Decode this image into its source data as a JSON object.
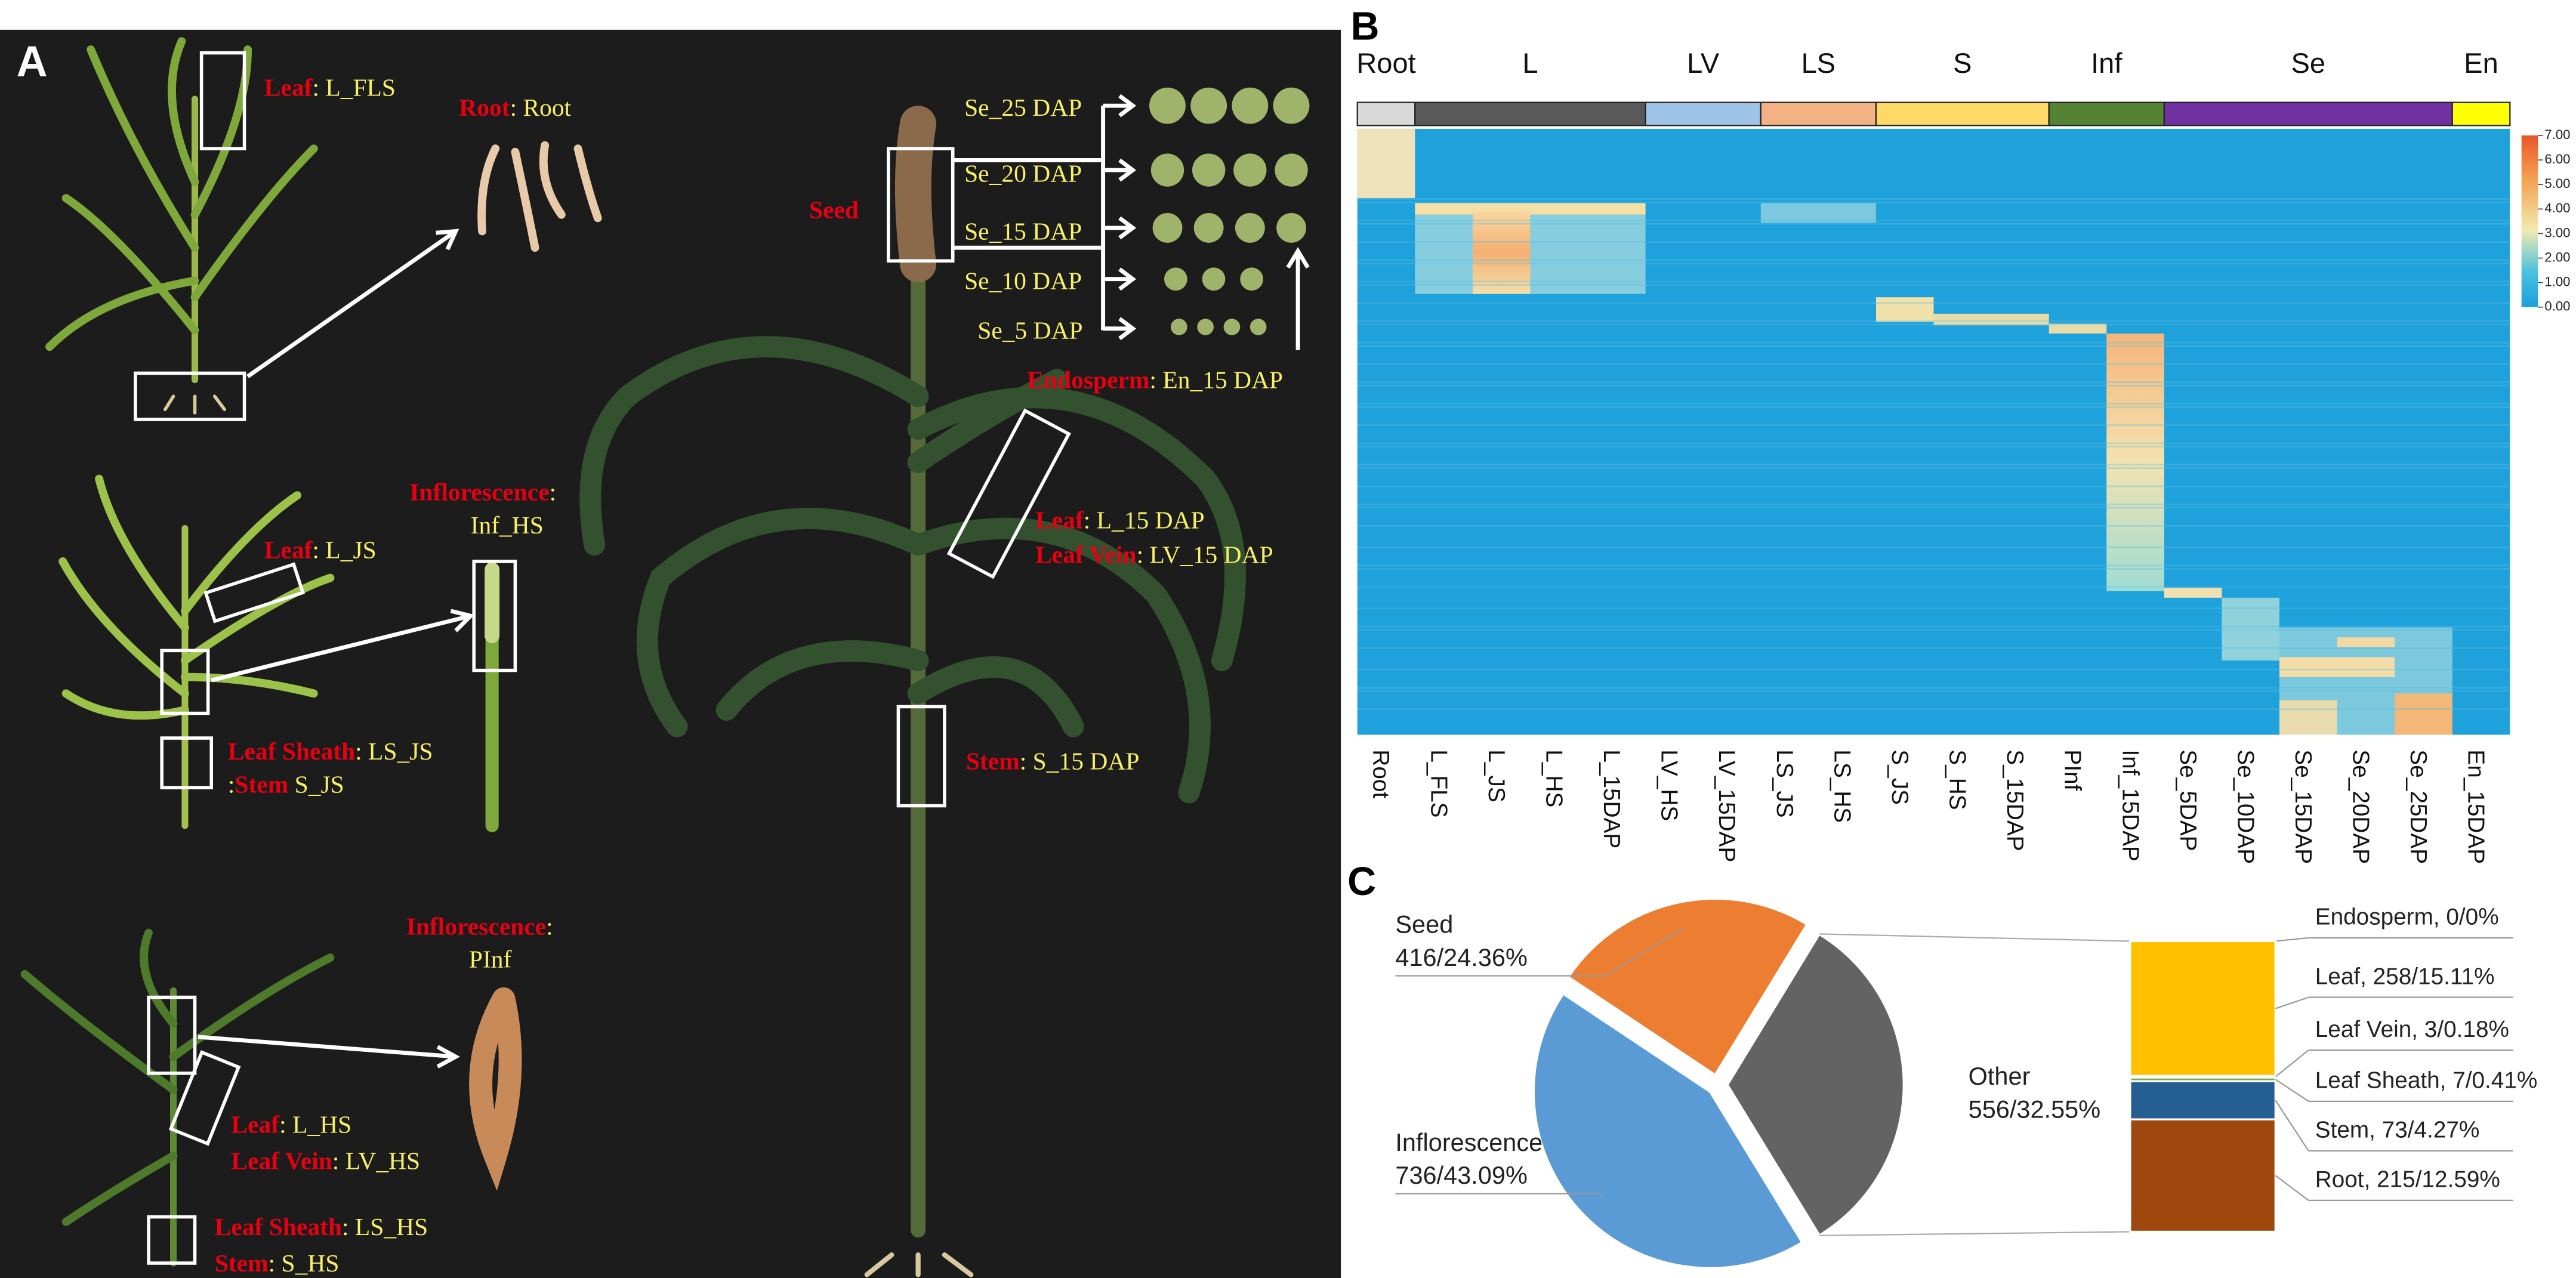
{
  "figure": {
    "panel_labels": [
      "A",
      "B",
      "C"
    ],
    "panel_a": {
      "annotations": [
        {
          "parts": [
            {
              "text": "Leaf",
              "color": "red"
            },
            {
              "text": ": L_FLS",
              "color": "yellow"
            }
          ]
        },
        {
          "parts": [
            {
              "text": "Root",
              "color": "red"
            },
            {
              "text": ": Root",
              "color": "yellow"
            }
          ]
        },
        {
          "parts": [
            {
              "text": "Inflorescence",
              "color": "red"
            },
            {
              "text": ":",
              "color": "yellow"
            }
          ]
        },
        {
          "parts": [
            {
              "text": "Inf_HS",
              "color": "yellow"
            }
          ]
        },
        {
          "parts": [
            {
              "text": "Leaf",
              "color": "red"
            },
            {
              "text": ": L_JS",
              "color": "yellow"
            }
          ]
        },
        {
          "parts": [
            {
              "text": "Leaf Sheath",
              "color": "red"
            },
            {
              "text": ": LS_JS",
              "color": "yellow"
            }
          ]
        },
        {
          "parts": [
            {
              "text": ":",
              "color": "yellow"
            },
            {
              "text": "Stem",
              "color": "red"
            },
            {
              "text": " S_JS",
              "color": "yellow"
            }
          ]
        },
        {
          "parts": [
            {
              "text": "Inflorescence",
              "color": "red"
            },
            {
              "text": ":",
              "color": "yellow"
            }
          ]
        },
        {
          "parts": [
            {
              "text": "PInf",
              "color": "yellow"
            }
          ]
        },
        {
          "parts": [
            {
              "text": "Leaf",
              "color": "red"
            },
            {
              "text": ": L_HS",
              "color": "yellow"
            }
          ]
        },
        {
          "parts": [
            {
              "text": "Leaf Vein",
              "color": "red"
            },
            {
              "text": ": LV_HS",
              "color": "yellow"
            }
          ]
        },
        {
          "parts": [
            {
              "text": "Leaf Sheath",
              "color": "red"
            },
            {
              "text": ": LS_HS",
              "color": "yellow"
            }
          ]
        },
        {
          "parts": [
            {
              "text": "Stem",
              "color": "red"
            },
            {
              "text": ": S_HS",
              "color": "yellow"
            }
          ]
        },
        {
          "parts": [
            {
              "text": "Seed",
              "color": "red"
            }
          ]
        },
        {
          "parts": [
            {
              "text": "Se_25 DAP",
              "color": "yellow"
            }
          ]
        },
        {
          "parts": [
            {
              "text": "Se_20 DAP",
              "color": "yellow"
            }
          ]
        },
        {
          "parts": [
            {
              "text": "Se_15 DAP",
              "color": "yellow"
            }
          ]
        },
        {
          "parts": [
            {
              "text": "Se_10 DAP",
              "color": "yellow"
            }
          ]
        },
        {
          "parts": [
            {
              "text": "Se_5 DAP",
              "color": "yellow"
            }
          ]
        },
        {
          "parts": [
            {
              "text": "Endosperm",
              "color": "red"
            },
            {
              "text": ": En_15 DAP",
              "color": "yellow"
            }
          ]
        },
        {
          "parts": [
            {
              "text": "Leaf",
              "color": "red"
            },
            {
              "text": ": L_15 DAP",
              "color": "yellow"
            }
          ]
        },
        {
          "parts": [
            {
              "text": "Leaf Vein",
              "color": "red"
            },
            {
              "text": ": LV_15 DAP",
              "color": "yellow"
            }
          ]
        },
        {
          "parts": [
            {
              "text": "Stem",
              "color": "red"
            },
            {
              "text": ": S_15 DAP",
              "color": "yellow"
            }
          ]
        }
      ]
    }
  },
  "chart_data": [
    {
      "type": "heatmap",
      "groups": [
        {
          "name": "Root",
          "color": "#d9d9d9",
          "samples": [
            "Root"
          ]
        },
        {
          "name": "L",
          "color": "#595959",
          "samples": [
            "L_FLS",
            "L_JS",
            "L_HS",
            "L_15DAP"
          ]
        },
        {
          "name": "LV",
          "color": "#9dc3e6",
          "samples": [
            "LV_HS",
            "LV_15DAP"
          ]
        },
        {
          "name": "LS",
          "color": "#f4b183",
          "samples": [
            "LS_JS",
            "LS_HS"
          ]
        },
        {
          "name": "S",
          "color": "#ffd966",
          "samples": [
            "S_JS",
            "S_HS",
            "S_15DAP"
          ]
        },
        {
          "name": "Inf",
          "color": "#548235",
          "samples": [
            "PInf",
            "Inf_15DAP"
          ]
        },
        {
          "name": "Se",
          "color": "#7030a0",
          "samples": [
            "Se_5DAP",
            "Se_10DAP",
            "Se_15DAP",
            "Se_20DAP",
            "Se_25DAP"
          ]
        },
        {
          "name": "En",
          "color": "#ffff00",
          "samples": [
            "En_15DAP"
          ]
        }
      ],
      "ylim": [
        0,
        7
      ],
      "yticks": [
        {
          "value": 7,
          "label": "7.00"
        },
        {
          "value": 6,
          "label": "6.00"
        },
        {
          "value": 5,
          "label": "5.00"
        },
        {
          "value": 4,
          "label": "4.00"
        },
        {
          "value": 3,
          "label": "3.00"
        },
        {
          "value": 2,
          "label": "2.00"
        },
        {
          "value": 1,
          "label": "1.00"
        },
        {
          "value": 0,
          "label": "0.00"
        }
      ]
    },
    {
      "type": "pie",
      "categories": [
        "Seed",
        "Other",
        "Inflorescence"
      ],
      "values": [
        416,
        556,
        736
      ],
      "value_labels": [
        "416/24.36%",
        "556/32.55%",
        "736/43.09%"
      ],
      "colors": [
        "#ed7d31",
        "#636363",
        "#5b9bd5"
      ],
      "breakdown": {
        "labels": [
          "Endosperm, 0/0%",
          "Leaf, 258/15.11%",
          "Leaf Vein, 3/0.18%",
          "Leaf Sheath, 7/0.41%",
          "Stem, 73/4.27%",
          "Root, 215/12.59%"
        ],
        "values": [
          0,
          258,
          3,
          7,
          73,
          215
        ],
        "colors": [
          "#a5a5a5",
          "#ffc000",
          "#5b9bd5",
          "#70ad47",
          "#255e91",
          "#9e480e"
        ]
      }
    }
  ]
}
